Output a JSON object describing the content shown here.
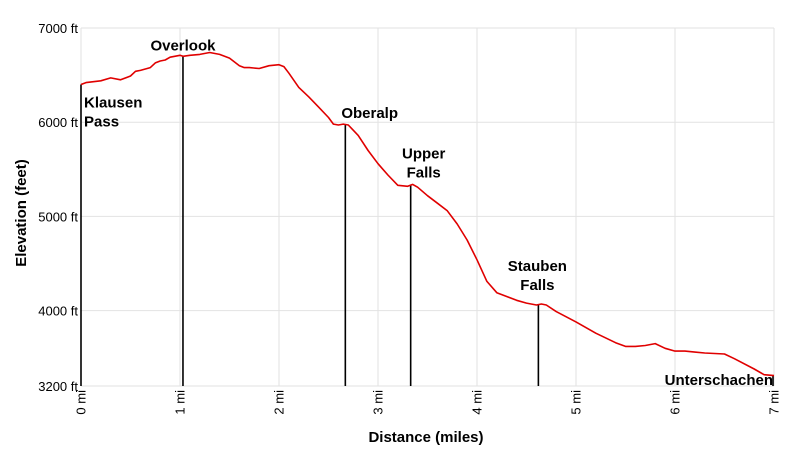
{
  "chart_data": {
    "type": "line",
    "title": "",
    "xlabel": "Distance (miles)",
    "ylabel": "Elevation (feet)",
    "xlim": [
      0,
      7
    ],
    "ylim": [
      3200,
      7000
    ],
    "grid": true,
    "line_color": "#e00000",
    "x_ticks": [
      {
        "value": 0,
        "label": "0 mi"
      },
      {
        "value": 1,
        "label": "1 mi"
      },
      {
        "value": 2,
        "label": "2 mi"
      },
      {
        "value": 3,
        "label": "3 mi"
      },
      {
        "value": 4,
        "label": "4 mi"
      },
      {
        "value": 5,
        "label": "5 mi"
      },
      {
        "value": 6,
        "label": "6 mi"
      },
      {
        "value": 7,
        "label": "7 mi"
      }
    ],
    "y_ticks": [
      {
        "value": 3200,
        "label": "3200 ft"
      },
      {
        "value": 4000,
        "label": "4000 ft"
      },
      {
        "value": 5000,
        "label": "5000 ft"
      },
      {
        "value": 6000,
        "label": "6000 ft"
      },
      {
        "value": 7000,
        "label": "7000 ft"
      }
    ],
    "series": [
      {
        "x": [
          0,
          0.05,
          0.2,
          0.3,
          0.4,
          0.5,
          0.55,
          0.6,
          0.7,
          0.75,
          0.8,
          0.85,
          0.9,
          1.0,
          1.03,
          1.1,
          1.2,
          1.3,
          1.4,
          1.5,
          1.6,
          1.65,
          1.7,
          1.8,
          1.9,
          2.0,
          2.05,
          2.1,
          2.2,
          2.3,
          2.4,
          2.5,
          2.55,
          2.6,
          2.65,
          2.7,
          2.8,
          2.9,
          3.0,
          3.1,
          3.2,
          3.3,
          3.35,
          3.4,
          3.5,
          3.6,
          3.7,
          3.8,
          3.9,
          4.0,
          4.1,
          4.2,
          4.3,
          4.4,
          4.5,
          4.6,
          4.65,
          4.7,
          4.8,
          5.0,
          5.2,
          5.4,
          5.5,
          5.6,
          5.7,
          5.8,
          5.9,
          6.0,
          6.1,
          6.2,
          6.3,
          6.5,
          6.6,
          6.8,
          6.9,
          7.0
        ],
        "values": [
          6400,
          6420,
          6440,
          6470,
          6450,
          6490,
          6540,
          6550,
          6580,
          6630,
          6650,
          6660,
          6690,
          6710,
          6700,
          6710,
          6720,
          6740,
          6720,
          6680,
          6600,
          6580,
          6580,
          6570,
          6600,
          6610,
          6590,
          6520,
          6370,
          6270,
          6160,
          6050,
          5980,
          5970,
          5980,
          5970,
          5860,
          5700,
          5560,
          5440,
          5330,
          5320,
          5340,
          5310,
          5220,
          5140,
          5060,
          4920,
          4750,
          4540,
          4310,
          4190,
          4150,
          4110,
          4080,
          4060,
          4070,
          4060,
          3990,
          3880,
          3760,
          3660,
          3620,
          3620,
          3630,
          3650,
          3600,
          3570,
          3570,
          3560,
          3550,
          3540,
          3490,
          3380,
          3320,
          3310
        ]
      }
    ],
    "waypoints": [
      {
        "name": "Klausen\nPass",
        "x": 0,
        "elev": 6400
      },
      {
        "name": "Overlook",
        "x": 1.03,
        "elev": 6700
      },
      {
        "name": "Oberalp",
        "x": 2.67,
        "elev": 5980
      },
      {
        "name": "Upper\nFalls",
        "x": 3.33,
        "elev": 5330
      },
      {
        "name": "Stauben\nFalls",
        "x": 4.62,
        "elev": 4060
      },
      {
        "name": "Unterschachen",
        "x": 7.0,
        "elev": 3310
      }
    ]
  }
}
